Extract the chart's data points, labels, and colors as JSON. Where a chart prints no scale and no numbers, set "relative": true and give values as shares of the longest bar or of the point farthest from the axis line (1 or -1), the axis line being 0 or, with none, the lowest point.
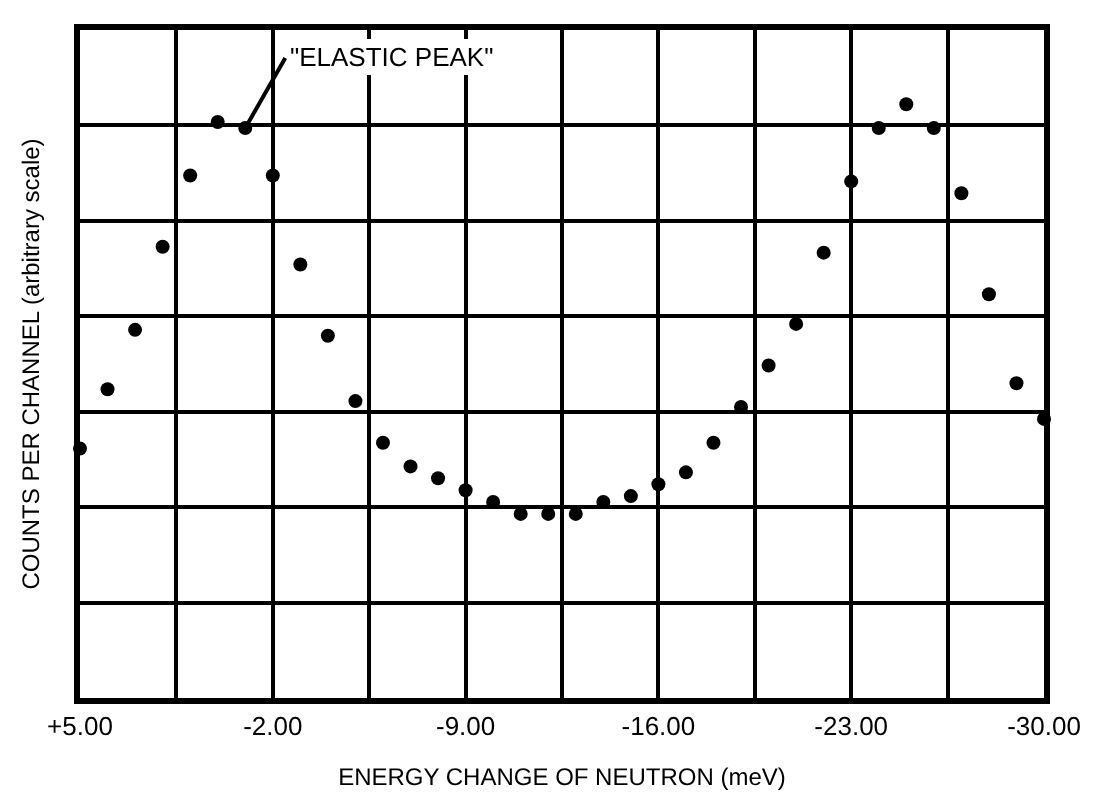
{
  "chart_data": {
    "type": "scatter",
    "relative": true,
    "xlabel": "ENERGY CHANGE OF NEUTRON (meV)",
    "ylabel": "COUNTS PER CHANNEL (arbitrary scale)",
    "x": [
      5,
      4,
      3,
      2,
      1,
      0,
      -1,
      -2,
      -3,
      -4,
      -5,
      -6,
      -7,
      -8,
      -9,
      -10,
      -11,
      -12,
      -13,
      -14,
      -15,
      -16,
      -17,
      -18,
      -19,
      -20,
      -21,
      -22,
      -23,
      -24,
      -25,
      -26,
      -27,
      -28,
      -29,
      -30
    ],
    "series": [
      {
        "color": "#000000",
        "values": [
          0.42,
          0.52,
          0.62,
          0.76,
          0.88,
          0.97,
          0.96,
          0.88,
          0.73,
          0.61,
          0.5,
          0.43,
          0.39,
          0.37,
          0.35,
          0.33,
          0.31,
          0.31,
          0.31,
          0.33,
          0.34,
          0.36,
          0.38,
          0.43,
          0.49,
          0.56,
          0.63,
          0.75,
          0.87,
          0.96,
          1,
          0.96,
          0.85,
          0.68,
          0.53,
          0.47
        ]
      }
    ],
    "xlim": [
      5,
      -30
    ],
    "xticks": [
      {
        "value": 5,
        "label": "+5.00"
      },
      {
        "value": 1.5,
        "label": null
      },
      {
        "value": -2,
        "label": "-2.00"
      },
      {
        "value": -5.5,
        "label": null
      },
      {
        "value": -9,
        "label": "-9.00"
      },
      {
        "value": -12.5,
        "label": null
      },
      {
        "value": -16,
        "label": "-16.00"
      },
      {
        "value": -19.5,
        "label": null
      },
      {
        "value": -23,
        "label": "-23.00"
      },
      {
        "value": -26.5,
        "label": null
      },
      {
        "value": -30,
        "label": "-30.00"
      }
    ],
    "annotations": [
      {
        "text": "\"ELASTIC PEAK\"",
        "x": -1,
        "y": 0.96
      }
    ],
    "grid": true,
    "marker": "circle"
  }
}
